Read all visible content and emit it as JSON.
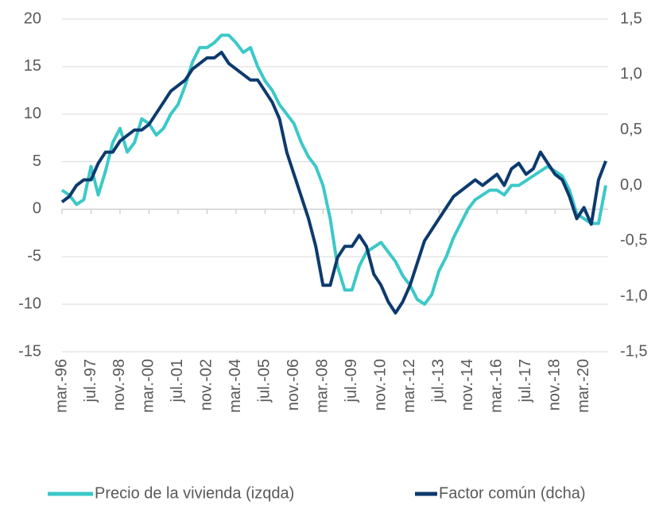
{
  "chart_data": {
    "type": "line",
    "categories": [
      "mar.-96",
      null,
      null,
      null,
      "jul.-97",
      null,
      null,
      null,
      "nov.-98",
      null,
      null,
      null,
      "mar.-00",
      null,
      null,
      null,
      "jul.-01",
      null,
      null,
      null,
      "nov.-02",
      null,
      null,
      null,
      "mar.-04",
      null,
      null,
      null,
      "jul.-05",
      null,
      null,
      null,
      "nov.-06",
      null,
      null,
      null,
      "mar.-08",
      null,
      null,
      null,
      "jul.-09",
      null,
      null,
      null,
      "nov.-10",
      null,
      null,
      null,
      "mar.-12",
      null,
      null,
      null,
      "jul.-13",
      null,
      null,
      null,
      "nov.-14",
      null,
      null,
      null,
      "mar.-16",
      null,
      null,
      null,
      "jul.-17",
      null,
      null,
      null,
      "nov.-18",
      null,
      null,
      null,
      "mar.-20",
      null,
      null,
      null
    ],
    "series": [
      {
        "name": "Precio de la vivienda (izqda)",
        "color": "#3cc8c8",
        "values": [
          2,
          1.5,
          0.5,
          1,
          4.5,
          1.5,
          4,
          7,
          8.5,
          6,
          7,
          9.5,
          9,
          7.8,
          8.5,
          10,
          11,
          13,
          15.5,
          17,
          17,
          17.5,
          18.3,
          18.3,
          17.5,
          16.5,
          17,
          15,
          13.5,
          12.5,
          11,
          10,
          9,
          7,
          5.5,
          4.5,
          2.5,
          -1,
          -6,
          -8.5,
          -8.5,
          -6,
          -4.5,
          -4,
          -3.5,
          -4.5,
          -5.5,
          -7,
          -8,
          -9.5,
          -10,
          -9,
          -6.5,
          -5,
          -3,
          -1.5,
          0,
          1,
          1.5,
          2,
          2,
          1.5,
          2.5,
          2.5,
          3,
          3.5,
          4,
          4.5,
          4,
          3.5,
          2,
          -0.5,
          -1,
          -1.5,
          -1.5,
          2.5
        ]
      },
      {
        "name": "Factor común (dcha)",
        "color": "#0d3a6e",
        "axis": "y2",
        "values": [
          -0.15,
          -0.1,
          0.0,
          0.05,
          0.05,
          0.2,
          0.3,
          0.3,
          0.4,
          0.45,
          0.5,
          0.5,
          0.55,
          0.65,
          0.75,
          0.85,
          0.9,
          0.95,
          1.05,
          1.1,
          1.15,
          1.15,
          1.2,
          1.1,
          1.05,
          1.0,
          0.95,
          0.95,
          0.85,
          0.75,
          0.6,
          0.3,
          0.1,
          -0.1,
          -0.3,
          -0.55,
          -0.9,
          -0.9,
          -0.65,
          -0.55,
          -0.55,
          -0.45,
          -0.55,
          -0.8,
          -0.9,
          -1.05,
          -1.15,
          -1.05,
          -0.9,
          -0.7,
          -0.5,
          -0.4,
          -0.3,
          -0.2,
          -0.1,
          -0.05,
          0.0,
          0.05,
          0.0,
          0.05,
          0.1,
          0.0,
          0.15,
          0.2,
          0.1,
          0.15,
          0.3,
          0.2,
          0.1,
          0.05,
          -0.1,
          -0.3,
          -0.2,
          -0.35,
          0.05,
          0.22
        ]
      }
    ],
    "ylim": [
      -15,
      20
    ],
    "yticks": [
      -15,
      -10,
      -5,
      0,
      5,
      10,
      15,
      20
    ],
    "y2lim": [
      -1.5,
      1.5
    ],
    "y2ticks": [
      {
        "value": -1.5,
        "label": "-1,5"
      },
      {
        "value": -1.0,
        "label": "-1,0"
      },
      {
        "value": -0.5,
        "label": "-0,5"
      },
      {
        "value": 0,
        "label": "0,0"
      },
      {
        "value": 0.5,
        "label": "0,5"
      },
      {
        "value": 1.0,
        "label": "1,0"
      },
      {
        "value": 1.5,
        "label": "1,5"
      }
    ],
    "grid": true,
    "legend": "bottom"
  }
}
